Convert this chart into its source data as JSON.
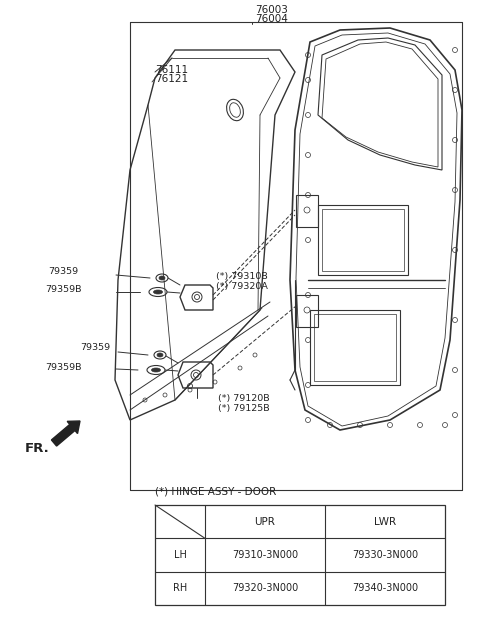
{
  "bg_color": "#ffffff",
  "line_color": "#333333",
  "text_color": "#222222",
  "fig_width": 4.8,
  "fig_height": 6.35,
  "table_title": "(*) HINGE ASSY - DOOR",
  "table_headers": [
    "",
    "UPR",
    "LWR"
  ],
  "table_rows": [
    [
      "LH",
      "79310-3N000",
      "79330-3N000"
    ],
    [
      "RH",
      "79320-3N000",
      "79340-3N000"
    ]
  ]
}
